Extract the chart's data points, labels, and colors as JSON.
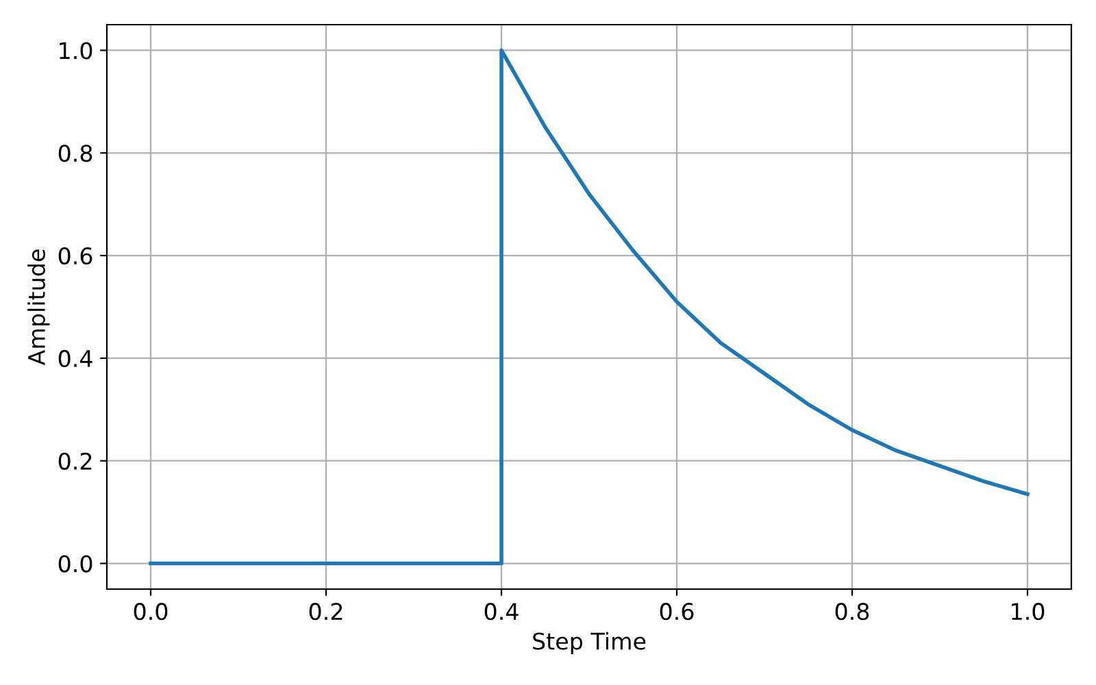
{
  "chart_data": {
    "type": "line",
    "xlabel": "Step Time",
    "ylabel": "Amplitude",
    "x": [
      0.0,
      0.4,
      0.4,
      0.45,
      0.5,
      0.55,
      0.6,
      0.65,
      0.7,
      0.75,
      0.8,
      0.85,
      0.9,
      0.95,
      1.0
    ],
    "series": [
      {
        "color": "#1f77b4",
        "values": [
          0.0,
          0.0,
          1.0,
          0.85,
          0.72,
          0.61,
          0.51,
          0.43,
          0.37,
          0.31,
          0.26,
          0.22,
          0.19,
          0.16,
          0.135
        ]
      }
    ],
    "xlim": [
      -0.05,
      1.05
    ],
    "ylim": [
      -0.05,
      1.05
    ],
    "xticks": [
      {
        "value": 0,
        "label": "0.0"
      },
      0.2,
      0.4,
      0.6,
      0.8,
      {
        "value": 1,
        "label": "1.0"
      }
    ],
    "yticks": [
      {
        "value": 0,
        "label": "0.0"
      },
      0.2,
      0.4,
      0.6,
      0.8,
      {
        "value": 1,
        "label": "1.0"
      }
    ],
    "grid": true,
    "line_style": "solid"
  }
}
